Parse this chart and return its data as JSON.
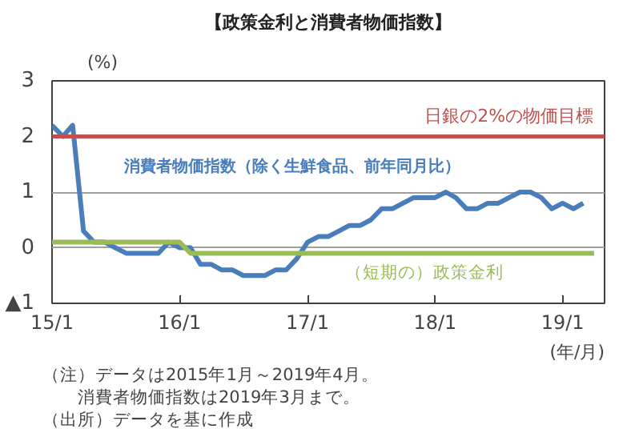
{
  "chart_data": {
    "type": "line",
    "title": "【政策金利と消費者物価指数】",
    "ylabel": "(%)",
    "xlabel": "(年/月)",
    "x": [
      "2015-01",
      "2015-02",
      "2015-03",
      "2015-04",
      "2015-05",
      "2015-06",
      "2015-07",
      "2015-08",
      "2015-09",
      "2015-10",
      "2015-11",
      "2015-12",
      "2016-01",
      "2016-02",
      "2016-03",
      "2016-04",
      "2016-05",
      "2016-06",
      "2016-07",
      "2016-08",
      "2016-09",
      "2016-10",
      "2016-11",
      "2016-12",
      "2017-01",
      "2017-02",
      "2017-03",
      "2017-04",
      "2017-05",
      "2017-06",
      "2017-07",
      "2017-08",
      "2017-09",
      "2017-10",
      "2017-11",
      "2017-12",
      "2018-01",
      "2018-02",
      "2018-03",
      "2018-04",
      "2018-05",
      "2018-06",
      "2018-07",
      "2018-08",
      "2018-09",
      "2018-10",
      "2018-11",
      "2018-12",
      "2019-01",
      "2019-02",
      "2019-03",
      "2019-04"
    ],
    "series": [
      {
        "name": "消費者物価指数（除く生鮮食品、前年同月比）",
        "color": "#4a7ebb",
        "values": [
          2.2,
          2.0,
          2.2,
          0.3,
          0.1,
          0.1,
          0.0,
          -0.1,
          -0.1,
          -0.1,
          -0.1,
          0.1,
          0.0,
          0.0,
          -0.3,
          -0.3,
          -0.4,
          -0.4,
          -0.5,
          -0.5,
          -0.5,
          -0.4,
          -0.4,
          -0.2,
          0.1,
          0.2,
          0.2,
          0.3,
          0.4,
          0.4,
          0.5,
          0.7,
          0.7,
          0.8,
          0.9,
          0.9,
          0.9,
          1.0,
          0.9,
          0.7,
          0.7,
          0.8,
          0.8,
          0.9,
          1.0,
          1.0,
          0.9,
          0.7,
          0.8,
          0.7,
          0.8,
          null
        ]
      },
      {
        "name": "（短期の）政策金利",
        "color": "#9bbb59",
        "values": [
          0.1,
          0.1,
          0.1,
          0.1,
          0.1,
          0.1,
          0.1,
          0.1,
          0.1,
          0.1,
          0.1,
          0.1,
          0.1,
          -0.1,
          -0.1,
          -0.1,
          -0.1,
          -0.1,
          -0.1,
          -0.1,
          -0.1,
          -0.1,
          -0.1,
          -0.1,
          -0.1,
          -0.1,
          -0.1,
          -0.1,
          -0.1,
          -0.1,
          -0.1,
          -0.1,
          -0.1,
          -0.1,
          -0.1,
          -0.1,
          -0.1,
          -0.1,
          -0.1,
          -0.1,
          -0.1,
          -0.1,
          -0.1,
          -0.1,
          -0.1,
          -0.1,
          -0.1,
          -0.1,
          -0.1,
          -0.1,
          -0.1,
          -0.1
        ]
      }
    ],
    "xlim": [
      "2015-01",
      "2019-05"
    ],
    "xticks": [
      {
        "value": "2015-01",
        "label": "15/1"
      },
      {
        "value": "2016-01",
        "label": "16/1"
      },
      {
        "value": "2017-01",
        "label": "17/1"
      },
      {
        "value": "2018-01",
        "label": "18/1"
      },
      {
        "value": "2019-01",
        "label": "19/1"
      }
    ],
    "ylim": [
      -1,
      3
    ],
    "yticks": [
      {
        "value": -1,
        "label": "▲1"
      },
      0,
      1,
      2,
      3
    ],
    "ref_lines": [
      {
        "axis": "y",
        "value": 2,
        "label": "日銀の2%の物価目標",
        "color": "#c0504d",
        "line_style": "solid"
      }
    ],
    "grid": "y",
    "legend": false,
    "marker": "none",
    "line_style": "solid",
    "annotations": [
      "（注）データは2015年1月～2019年4月。",
      "消費者物価指数は2019年3月まで。",
      "（出所）データを基に作成"
    ]
  }
}
